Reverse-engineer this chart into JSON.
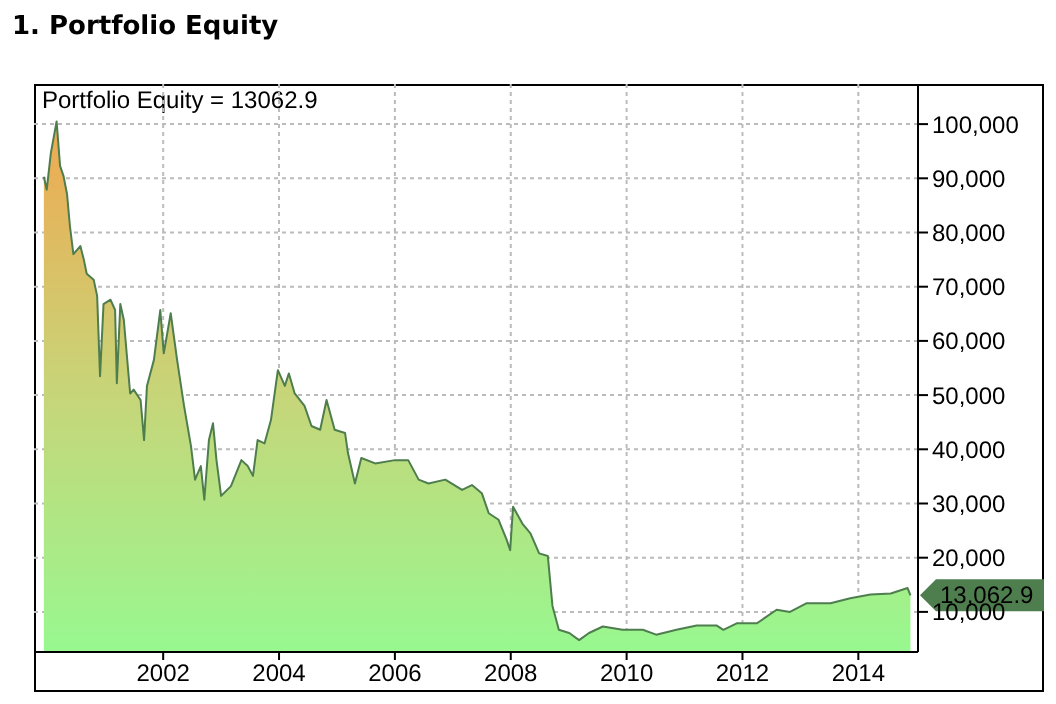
{
  "chart_data": {
    "type": "area",
    "title": "1. Portfolio Equity",
    "annotations": [
      "Portfolio Equity = 13062.9",
      "13,062.9"
    ],
    "x": [
      1999.94,
      1999.99,
      2000.06,
      2000.16,
      2000.22,
      2000.28,
      2000.34,
      2000.39,
      2000.45,
      2000.57,
      2000.63,
      2000.68,
      2000.8,
      2000.86,
      2000.91,
      2000.97,
      2001.09,
      2001.17,
      2001.2,
      2001.26,
      2001.32,
      2001.43,
      2001.49,
      2001.61,
      2001.67,
      2001.72,
      2001.84,
      2001.95,
      2002.01,
      2002.13,
      2002.24,
      2002.36,
      2002.48,
      2002.55,
      2002.65,
      2002.71,
      2002.79,
      2002.86,
      2002.92,
      2003.0,
      2003.17,
      2003.35,
      2003.46,
      2003.55,
      2003.63,
      2003.75,
      2003.86,
      2003.98,
      2004.1,
      2004.17,
      2004.27,
      2004.44,
      2004.56,
      2004.71,
      2004.82,
      2004.96,
      2005.14,
      2005.19,
      2005.31,
      2005.42,
      2005.66,
      2006.0,
      2006.23,
      2006.41,
      2006.58,
      2006.87,
      2007.16,
      2007.33,
      2007.5,
      2007.62,
      2007.79,
      2007.93,
      2007.99,
      2008.04,
      2008.2,
      2008.34,
      2008.49,
      2008.64,
      2008.72,
      2008.83,
      2009.01,
      2009.18,
      2009.35,
      2009.59,
      2009.93,
      2010.28,
      2010.51,
      2010.86,
      2011.21,
      2011.55,
      2011.67,
      2011.9,
      2012.25,
      2012.59,
      2012.82,
      2013.11,
      2013.52,
      2013.86,
      2014.21,
      2014.56,
      2014.85,
      2014.9
    ],
    "series": [
      {
        "color": "#4e7d4e",
        "values": [
          90300,
          87900,
          94600,
          100500,
          92300,
          90400,
          87100,
          81200,
          76000,
          77500,
          75000,
          72400,
          71300,
          68300,
          53500,
          66800,
          67600,
          65700,
          52200,
          66800,
          63900,
          50300,
          51000,
          49100,
          41700,
          51700,
          56500,
          65700,
          57700,
          65100,
          56500,
          48000,
          40600,
          34400,
          36900,
          30700,
          41700,
          44800,
          38000,
          31400,
          33200,
          38000,
          36900,
          35100,
          41700,
          41100,
          45400,
          54600,
          51700,
          54000,
          50300,
          48000,
          44300,
          43600,
          49100,
          43600,
          43000,
          39300,
          33700,
          38400,
          37400,
          38000,
          38000,
          34400,
          33700,
          34400,
          32500,
          33400,
          31900,
          28200,
          27000,
          23300,
          21400,
          29400,
          26300,
          24500,
          20800,
          20300,
          11100,
          6700,
          6100,
          4800,
          6100,
          7300,
          6700,
          6700,
          5800,
          6700,
          7500,
          7500,
          6700,
          7900,
          7900,
          10400,
          10000,
          11600,
          11600,
          12500,
          13200,
          13400,
          14400,
          13062.9
        ]
      }
    ],
    "xlim": [
      1999.77,
      2015.03
    ],
    "xticks": [
      2002,
      2004,
      2006,
      2008,
      2010,
      2012,
      2014
    ],
    "ylim": [
      2600,
      107400
    ],
    "yticks": [
      {
        "value": 10000,
        "label": "10,000"
      },
      {
        "value": 20000,
        "label": "20,000"
      },
      {
        "value": 30000,
        "label": "30,000"
      },
      {
        "value": 40000,
        "label": "40,000"
      },
      {
        "value": 50000,
        "label": "50,000"
      },
      {
        "value": 60000,
        "label": "60,000"
      },
      {
        "value": 70000,
        "label": "70,000"
      },
      {
        "value": 80000,
        "label": "80,000"
      },
      {
        "value": 90000,
        "label": "90,000"
      },
      {
        "value": 100000,
        "label": "100,000"
      }
    ],
    "grid": true,
    "legend": false
  }
}
